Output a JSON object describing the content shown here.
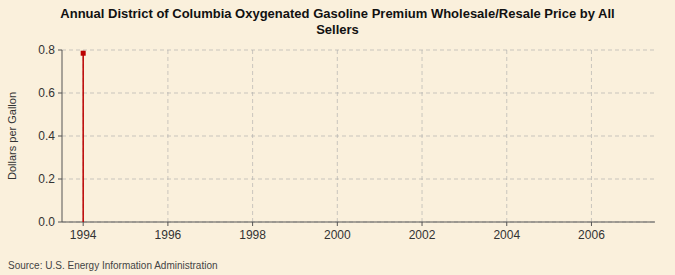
{
  "chart_data": {
    "type": "stem",
    "title": "Annual District of Columbia Oxygenated Gasoline Premium Wholesale/Resale Price by All\nSellers",
    "y_label": "Dollars per Gallon",
    "source": "Source: U.S. Energy Information Administration",
    "x": [
      1994
    ],
    "series": [
      {
        "values": [
          0.785
        ],
        "color": "#bb0000",
        "marker": "square"
      }
    ],
    "xlim": [
      1993.5,
      2007.5
    ],
    "ylim": [
      0.0,
      0.8
    ],
    "xticks": [
      1994,
      1996,
      1998,
      2000,
      2002,
      2004,
      2006
    ],
    "yticks": [
      {
        "value": 0.0,
        "label": "0.0"
      },
      0.2,
      0.4,
      0.6,
      0.8
    ],
    "grid": true
  }
}
